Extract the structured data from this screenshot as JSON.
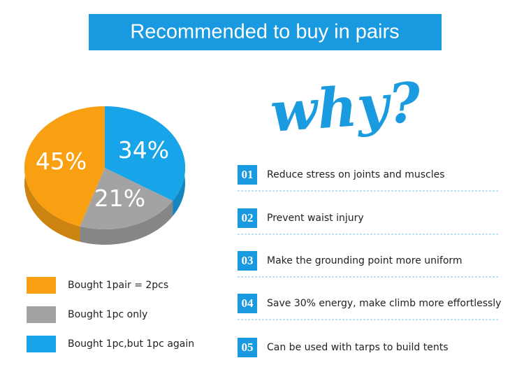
{
  "chart_data": {
    "type": "pie",
    "title": "Recommended to buy in pairs",
    "categories": [
      "Bought 1pair = 2pcs",
      "Bought 1pc only",
      "Bought 1pc,but 1pc again"
    ],
    "values": [
      45,
      21,
      34
    ],
    "value_labels": [
      "45%",
      "21%",
      "34%"
    ],
    "colors": [
      "#f9a012",
      "#a3a3a3",
      "#18a4e8"
    ]
  },
  "why": {
    "heading": "why?",
    "items": [
      {
        "number": "01",
        "text": "Reduce stress on joints and muscles"
      },
      {
        "number": "02",
        "text": "Prevent waist injury"
      },
      {
        "number": "03",
        "text": "Make the grounding point more uniform"
      },
      {
        "number": "04",
        "text": "Save 30% energy, make climb more effortlessly"
      },
      {
        "number": "05",
        "text": "Can be used with tarps to build tents"
      }
    ]
  }
}
